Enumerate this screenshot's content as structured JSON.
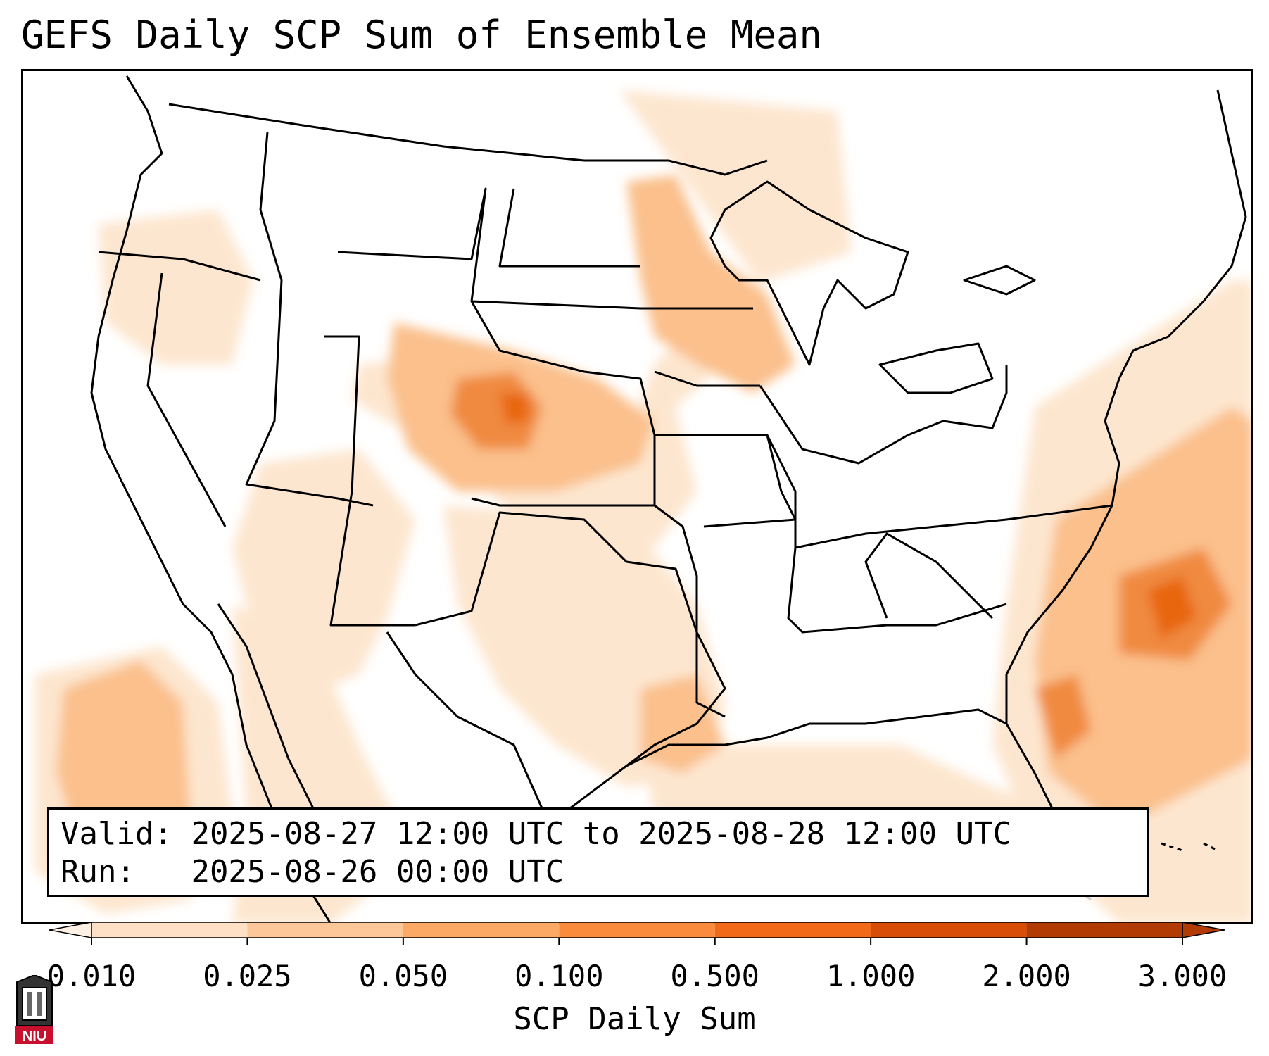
{
  "title": "GEFS Daily SCP Sum of Ensemble Mean",
  "info": {
    "valid_label": "Valid:",
    "valid_value": "2025-08-27 12:00 UTC to 2025-08-28 12:00 UTC",
    "run_label": "Run:",
    "run_value": "2025-08-26 00:00 UTC"
  },
  "colorbar": {
    "label": "SCP Daily Sum",
    "ticks": [
      "0.010",
      "0.025",
      "0.050",
      "0.100",
      "0.500",
      "1.000",
      "2.000",
      "3.000"
    ],
    "colors": [
      "#fef1e4",
      "#fde0c5",
      "#fdc799",
      "#fca965",
      "#fa8b3c",
      "#f06a1a",
      "#d84e08",
      "#b23a03"
    ],
    "extend": "both"
  },
  "logo": {
    "text": "NIU",
    "color": "#c8102e"
  },
  "colors": {
    "state_lines": "#000000",
    "shade_light": "#fde6cf",
    "shade_mid": "#fbc08c",
    "shade_high": "#f08a40",
    "shade_max": "#e8660e"
  }
}
